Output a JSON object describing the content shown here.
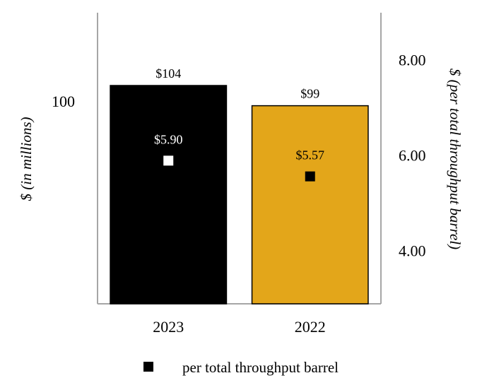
{
  "chart_data": {
    "type": "bar",
    "categories": [
      "2023",
      "2022"
    ],
    "series": [
      {
        "values": [
          104,
          99
        ],
        "value_labels": [
          "$104",
          "$99"
        ],
        "colors": [
          "#000000",
          "#E3A61A"
        ]
      },
      {
        "name": "per total throughput barrel",
        "type": "scatter",
        "axis": "right",
        "values": [
          5.9,
          5.57
        ],
        "value_labels": [
          "$5.90",
          "$5.57"
        ],
        "marker_colors": [
          "#FFFFFF",
          "#000000"
        ]
      }
    ],
    "ylabel": "$ (in millions)",
    "ylabel_right": "$ (per total throughput barrel)",
    "ylim": [
      50,
      122
    ],
    "y_ticks": [
      "100"
    ],
    "ylim_right": [
      2.9,
      9.0
    ],
    "y_ticks_right": [
      "4.00",
      "6.00",
      "8.00"
    ],
    "legend": {
      "position": "bottom",
      "entries": [
        "per total throughput barrel"
      ]
    },
    "grid": false
  }
}
